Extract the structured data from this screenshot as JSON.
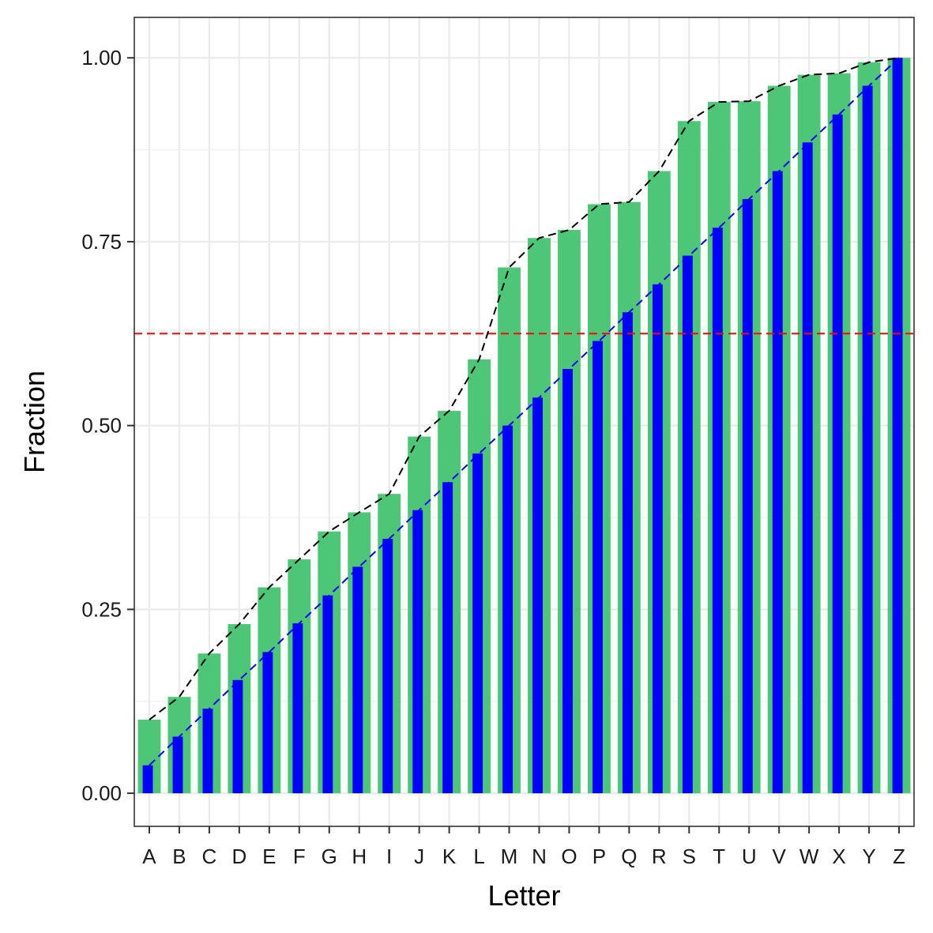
{
  "chart_data": {
    "type": "bar",
    "xlabel": "Letter",
    "ylabel": "Fraction",
    "ylim": [
      -0.045,
      1.055
    ],
    "yticks": [
      0,
      0.25,
      0.5,
      0.75,
      1
    ],
    "ytick_labels": [
      "0.00",
      "0.25",
      "0.50",
      "0.75",
      "1.00"
    ],
    "grid": true,
    "categories": [
      "A",
      "B",
      "C",
      "D",
      "E",
      "F",
      "G",
      "H",
      "I",
      "J",
      "K",
      "L",
      "M",
      "N",
      "O",
      "P",
      "Q",
      "R",
      "S",
      "T",
      "U",
      "V",
      "W",
      "X",
      "Y",
      "Z"
    ],
    "series": [
      {
        "type": "bar",
        "color": "#4dc677",
        "values": [
          0.1,
          0.131,
          0.19,
          0.23,
          0.28,
          0.318,
          0.356,
          0.382,
          0.407,
          0.485,
          0.52,
          0.59,
          0.715,
          0.755,
          0.766,
          0.801,
          0.804,
          0.846,
          0.914,
          0.94,
          0.941,
          0.962,
          0.977,
          0.979,
          0.994,
          1.0
        ]
      },
      {
        "type": "bar",
        "color": "#0000ff",
        "values": [
          0.038,
          0.077,
          0.115,
          0.154,
          0.192,
          0.231,
          0.269,
          0.308,
          0.346,
          0.385,
          0.423,
          0.462,
          0.5,
          0.538,
          0.577,
          0.615,
          0.654,
          0.692,
          0.731,
          0.769,
          0.808,
          0.846,
          0.885,
          0.923,
          0.962,
          1.0
        ]
      }
    ],
    "lines": [
      {
        "style": "dashed",
        "color": "#000000",
        "follows": "green bar tops"
      },
      {
        "style": "dashed",
        "color": "#0000ff",
        "follows": "blue bar tops"
      }
    ],
    "hline": {
      "y": 0.625,
      "style": "dashed",
      "color": "#ff0000"
    }
  }
}
